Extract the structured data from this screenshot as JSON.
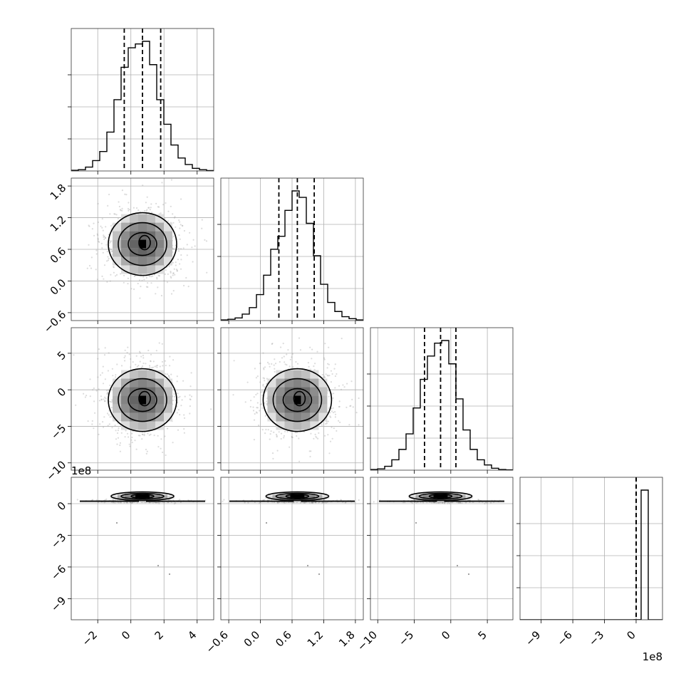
{
  "chart_data": {
    "type": "corner",
    "grid": true,
    "parameters": [
      {
        "index": 0,
        "range": [
          -3.6,
          5.0
        ],
        "ticks": [
          -2,
          0,
          2,
          4
        ],
        "tick_labels": [
          "−2",
          "0",
          "2",
          "4"
        ],
        "offset_label": "",
        "quantiles": [
          -0.4,
          0.7,
          1.8
        ],
        "hist_edges": [
          -3.6,
          -3.17,
          -2.74,
          -2.31,
          -1.88,
          -1.45,
          -1.02,
          -0.59,
          -0.16,
          0.27,
          0.7,
          1.13,
          1.56,
          1.99,
          2.42,
          2.85,
          3.28,
          3.71,
          4.14,
          4.57,
          5.0
        ],
        "hist_values": [
          0.005,
          0.01,
          0.03,
          0.08,
          0.15,
          0.3,
          0.55,
          0.8,
          0.95,
          0.98,
          1.0,
          0.82,
          0.55,
          0.36,
          0.2,
          0.1,
          0.05,
          0.02,
          0.01,
          0.003
        ]
      },
      {
        "index": 1,
        "range": [
          -0.75,
          1.95
        ],
        "ticks": [
          -0.6,
          0.0,
          0.6,
          1.2,
          1.8
        ],
        "tick_labels": [
          "−0.6",
          "0.0",
          "0.6",
          "1.2",
          "1.8"
        ],
        "offset_label": "",
        "quantiles": [
          0.35,
          0.7,
          1.02
        ],
        "hist_edges": [
          -0.75,
          -0.615,
          -0.48,
          -0.345,
          -0.21,
          -0.075,
          0.06,
          0.195,
          0.33,
          0.465,
          0.6,
          0.735,
          0.87,
          1.005,
          1.14,
          1.275,
          1.41,
          1.545,
          1.68,
          1.815,
          1.95
        ],
        "hist_values": [
          0.005,
          0.01,
          0.02,
          0.05,
          0.1,
          0.2,
          0.35,
          0.55,
          0.65,
          0.85,
          1.0,
          0.95,
          0.75,
          0.5,
          0.28,
          0.14,
          0.07,
          0.03,
          0.015,
          0.005
        ]
      },
      {
        "index": 2,
        "range": [
          -11.0,
          8.5
        ],
        "ticks": [
          -10,
          -5,
          0,
          5
        ],
        "tick_labels": [
          "−10",
          "−5",
          "0",
          "5"
        ],
        "offset_label": "",
        "quantiles": [
          -3.6,
          -1.4,
          0.7
        ],
        "hist_edges": [
          -11.0,
          -10.025,
          -9.05,
          -8.075,
          -7.1,
          -6.125,
          -5.15,
          -4.175,
          -3.2,
          -2.225,
          -1.25,
          -0.275,
          0.7,
          1.675,
          2.65,
          3.625,
          4.6,
          5.575,
          6.55,
          7.525,
          8.5
        ],
        "hist_values": [
          0.005,
          0.01,
          0.03,
          0.08,
          0.16,
          0.28,
          0.48,
          0.7,
          0.88,
          0.98,
          1.0,
          0.82,
          0.55,
          0.31,
          0.16,
          0.08,
          0.04,
          0.015,
          0.005,
          0.002
        ]
      },
      {
        "index": 3,
        "range": [
          -1.1,
          0.25
        ],
        "ticks": [
          -0.9,
          -0.6,
          -0.3,
          0.0
        ],
        "tick_labels": [
          "−9",
          "−6",
          "−3",
          "0"
        ],
        "offset_label": "1e8",
        "quantiles": [
          0.0,
          0.0,
          0.0
        ],
        "hist_edges": [
          -1.1,
          -1.0325,
          -0.965,
          -0.8975,
          -0.83,
          -0.7625,
          -0.695,
          -0.6275,
          -0.56,
          -0.4925,
          -0.425,
          -0.3575,
          -0.29,
          -0.2225,
          -0.155,
          -0.0875,
          -0.02,
          0.0475,
          0.115,
          0.1825,
          0.25
        ],
        "hist_values": [
          0,
          0,
          0,
          0,
          0,
          0,
          0,
          0,
          0,
          0,
          0,
          0,
          0,
          0,
          0,
          0.0005,
          0.0008,
          1.0,
          0,
          0
        ]
      }
    ],
    "scatter_centers": {
      "0-1": [
        0.7,
        0.7
      ],
      "0-2": [
        0.7,
        -1.4
      ],
      "1-2": [
        0.7,
        -1.4
      ],
      "0-3": [
        0.7,
        0.03
      ],
      "1-3": [
        0.7,
        0.03
      ],
      "2-3": [
        -1.4,
        0.03
      ]
    }
  }
}
